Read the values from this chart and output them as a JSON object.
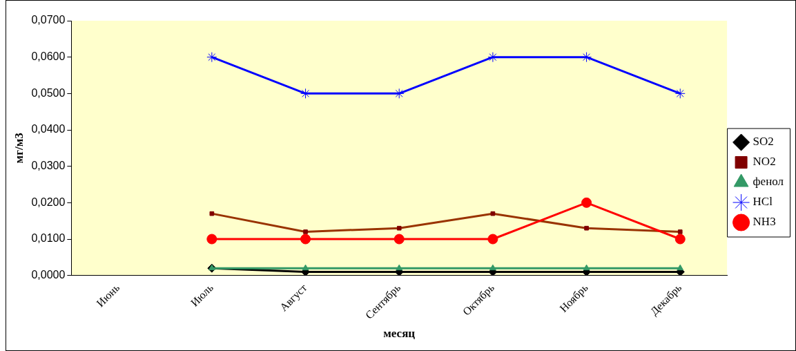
{
  "chart_data": {
    "type": "line",
    "xlabel": "месяц",
    "ylabel": "мг/м3",
    "categories": [
      "Июнь",
      "Июль",
      "Август",
      "Сентябрь",
      "Октябрь",
      "Ноябрь",
      "Декабрь"
    ],
    "ylim": [
      0,
      0.07
    ],
    "yticks": [
      {
        "value": 0,
        "label": "0,0000"
      },
      {
        "value": 0.01,
        "label": "0,0100"
      },
      {
        "value": 0.02,
        "label": "0,0200"
      },
      {
        "value": 0.03,
        "label": "0,0300"
      },
      {
        "value": 0.04,
        "label": "0,0400"
      },
      {
        "value": 0.05,
        "label": "0,0500"
      },
      {
        "value": 0.06,
        "label": "0,0600"
      },
      {
        "value": 0.07,
        "label": "0,0700"
      }
    ],
    "grid": false,
    "legend": "right",
    "series": [
      {
        "name": "SO2",
        "color": "#000000",
        "marker": "diamond",
        "values": [
          null,
          0.002,
          0.001,
          0.001,
          0.001,
          0.001,
          0.001
        ]
      },
      {
        "name": "NO2",
        "color": "#993300",
        "marker": "square",
        "values": [
          null,
          0.017,
          0.012,
          0.013,
          0.017,
          0.013,
          0.012
        ]
      },
      {
        "name": "фенол",
        "color": "#339966",
        "marker": "triangle",
        "values": [
          null,
          0.002,
          0.002,
          0.002,
          0.002,
          0.002,
          0.002
        ]
      },
      {
        "name": "HCl",
        "color": "#0000ff",
        "marker": "cross",
        "values": [
          null,
          0.06,
          0.05,
          0.05,
          0.06,
          0.06,
          0.05
        ]
      },
      {
        "name": "NH3",
        "color": "#ff0000",
        "marker": "circle",
        "values": [
          null,
          0.01,
          0.01,
          0.01,
          0.01,
          0.02,
          0.01
        ]
      }
    ]
  }
}
